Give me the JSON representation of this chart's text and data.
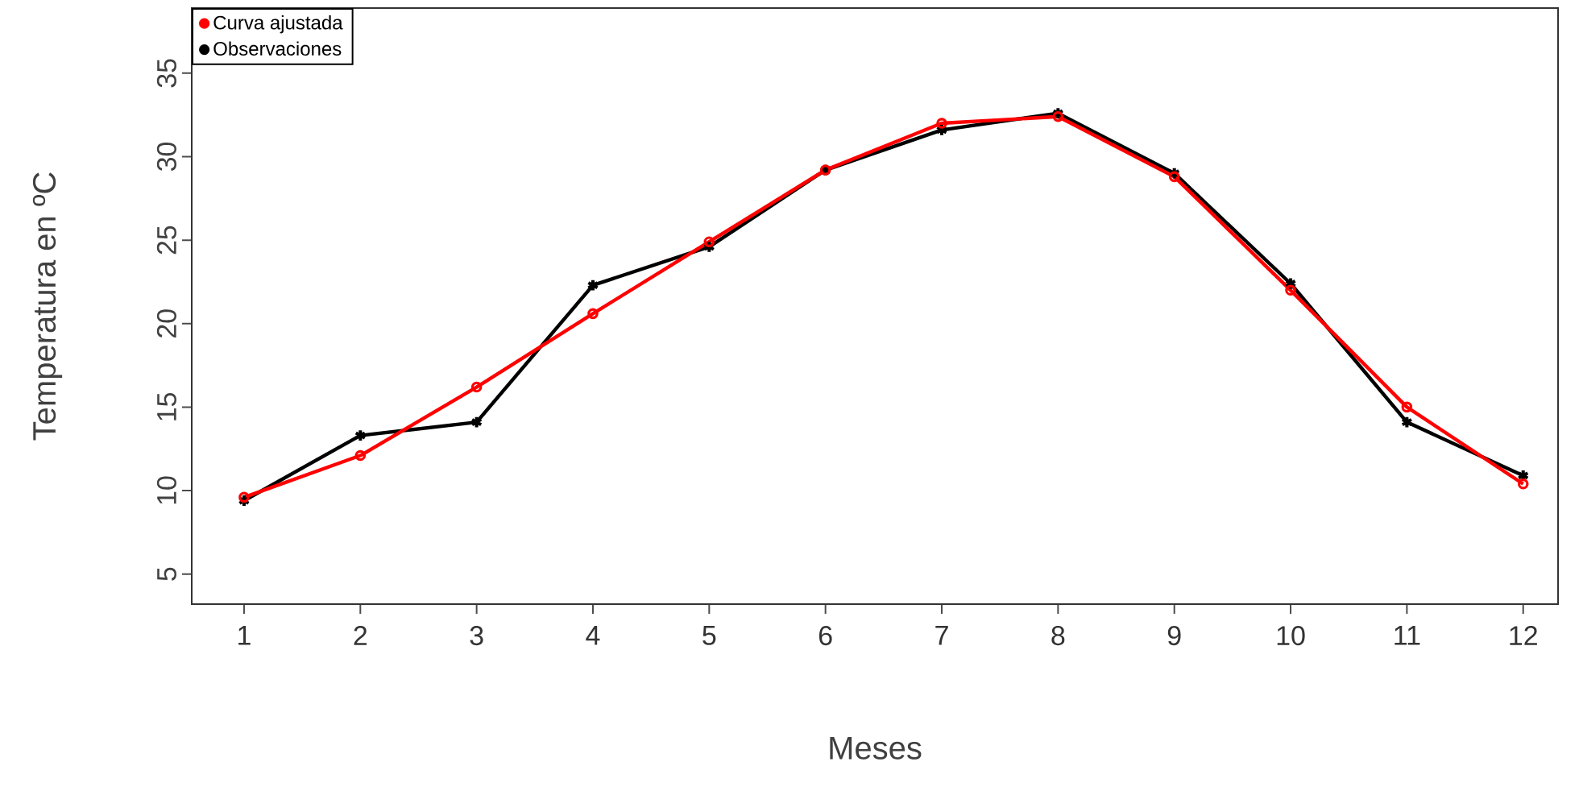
{
  "chart_data": {
    "type": "line",
    "xlabel": "Meses",
    "ylabel": "Temperatura en ºC",
    "x": [
      1,
      2,
      3,
      4,
      5,
      6,
      7,
      8,
      9,
      10,
      11,
      12
    ],
    "series": [
      {
        "name": "Curva ajustada",
        "color": "#ff0000",
        "marker": "circle",
        "values": [
          9.6,
          12.1,
          16.2,
          20.6,
          24.9,
          29.2,
          32.0,
          32.4,
          28.8,
          22.0,
          15.0,
          10.4
        ]
      },
      {
        "name": "Observaciones",
        "color": "#000000",
        "marker": "cross",
        "values": [
          9.4,
          13.3,
          14.1,
          22.3,
          24.6,
          29.2,
          31.6,
          32.6,
          29.0,
          22.4,
          14.1,
          10.9
        ]
      }
    ],
    "xlim": [
      0.55,
      12.3
    ],
    "ylim": [
      3.2,
      38.9
    ],
    "xticks": [
      1,
      2,
      3,
      4,
      5,
      6,
      7,
      8,
      9,
      10,
      11,
      12
    ],
    "yticks": [
      5,
      10,
      15,
      20,
      25,
      30,
      35
    ],
    "legend": "top left",
    "grid": false,
    "line_style": "solid"
  }
}
